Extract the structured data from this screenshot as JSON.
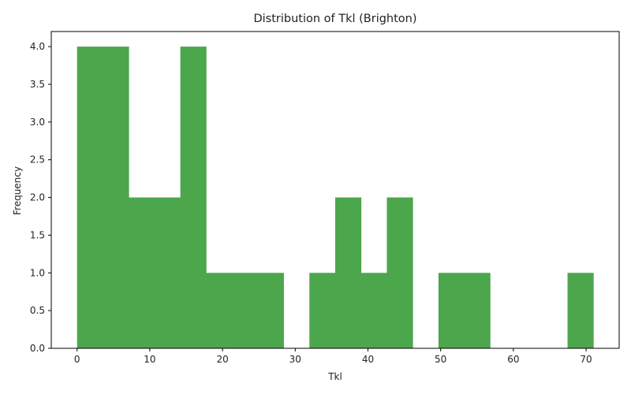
{
  "chart_data": {
    "type": "bar",
    "title": "Distribution of Tkl (Brighton)",
    "xlabel": "Tkl",
    "ylabel": "Frequency",
    "bin_edges": [
      0,
      3.55,
      7.1,
      10.65,
      14.2,
      17.75,
      21.3,
      24.85,
      28.4,
      31.95,
      35.5,
      39.05,
      42.6,
      46.15,
      49.7,
      53.25,
      56.8,
      60.35,
      63.9,
      67.45,
      71.0
    ],
    "values": [
      4,
      4,
      2,
      2,
      4,
      1,
      1,
      1,
      0,
      1,
      2,
      1,
      2,
      0,
      1,
      1,
      0,
      0,
      0,
      1
    ],
    "xlim": [
      -3.55,
      74.55
    ],
    "ylim": [
      0,
      4.2
    ],
    "xticks": [
      0,
      10,
      20,
      30,
      40,
      50,
      60,
      70
    ],
    "xtick_labels": [
      "0",
      "10",
      "20",
      "30",
      "40",
      "50",
      "60",
      "70"
    ],
    "yticks": [
      0,
      0.5,
      1.0,
      1.5,
      2.0,
      2.5,
      3.0,
      3.5,
      4.0
    ],
    "ytick_labels": [
      "0.0",
      "0.5",
      "1.0",
      "1.5",
      "2.0",
      "2.5",
      "3.0",
      "3.5",
      "4.0"
    ],
    "bar_color": "#4ca64c",
    "grid": false,
    "legend": "none"
  }
}
